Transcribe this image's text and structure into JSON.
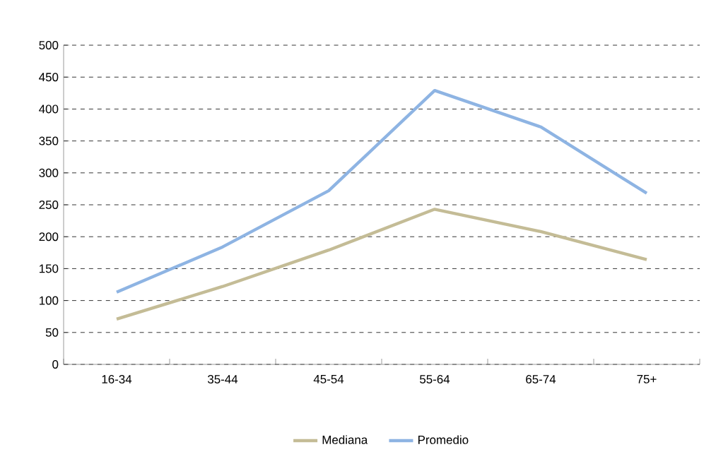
{
  "chart_data": {
    "type": "line",
    "categories": [
      "16-34",
      "35-44",
      "45-54",
      "55-64",
      "65-74",
      "75+"
    ],
    "series": [
      {
        "name": "Mediana",
        "color": "#c4bc96",
        "values": [
          71,
          122,
          179,
          243,
          208,
          164
        ]
      },
      {
        "name": "Promedio",
        "color": "#8eb4e3",
        "values": [
          113,
          184,
          272,
          429,
          372,
          268
        ]
      }
    ],
    "ylim": [
      0,
      500
    ],
    "yticks": [
      0,
      50,
      100,
      150,
      200,
      250,
      300,
      350,
      400,
      450,
      500
    ],
    "grid": "y",
    "legend": "bottom",
    "marker": "none",
    "line_style": "solid"
  }
}
